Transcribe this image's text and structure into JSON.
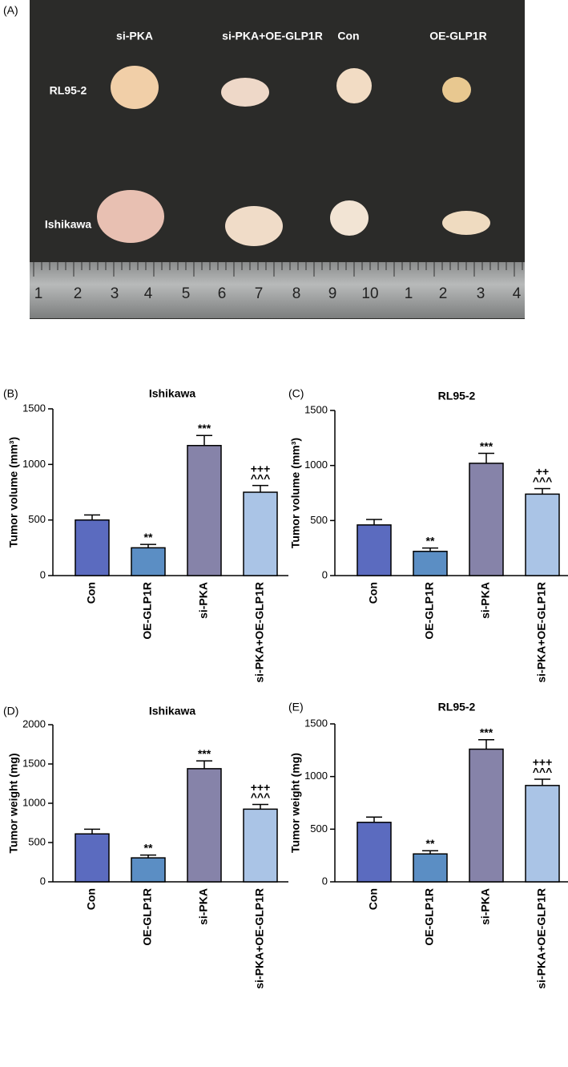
{
  "figure": {
    "panel_labels": [
      "(A)",
      "(B)",
      "(C)",
      "(D)",
      "(E)"
    ],
    "photo": {
      "group_labels": [
        "si-PKA",
        "si-PKA+OE-GLP1R",
        "Con",
        "OE-GLP1R"
      ],
      "row_labels": [
        "RL95-2",
        "Ishikawa"
      ],
      "ruler_labels": [
        "1",
        "2",
        "3",
        "4",
        "5",
        "6",
        "7",
        "8",
        "9",
        "10",
        "1",
        "2",
        "3",
        "4"
      ]
    }
  },
  "chart_data": [
    {
      "type": "bar",
      "title": "Ishikawa",
      "ylabel": "Tumor volume (mm³)",
      "categories": [
        "Con",
        "OE-GLP1R",
        "si-PKA",
        "si-PKA+OE-GLP1R"
      ],
      "values": [
        500,
        250,
        1170,
        750
      ],
      "errors": [
        45,
        30,
        90,
        60
      ],
      "annotations": [
        [],
        [
          "**"
        ],
        [
          "***"
        ],
        [
          "+++",
          "^^^"
        ]
      ],
      "colors": [
        "#5b6bbf",
        "#5b8ec4",
        "#8683a9",
        "#aac4e6"
      ],
      "ylim": [
        0,
        1500
      ],
      "yticks": [
        0,
        500,
        1000,
        1500
      ]
    },
    {
      "type": "bar",
      "title": "RL95-2",
      "ylabel": "Tumor volume (mm³)",
      "categories": [
        "Con",
        "OE-GLP1R",
        "si-PKA",
        "si-PKA+OE-GLP1R"
      ],
      "values": [
        460,
        220,
        1020,
        740
      ],
      "errors": [
        50,
        30,
        90,
        50
      ],
      "annotations": [
        [],
        [
          "**"
        ],
        [
          "***"
        ],
        [
          "++",
          "^^^"
        ]
      ],
      "colors": [
        "#5b6bbf",
        "#5b8ec4",
        "#8683a9",
        "#aac4e6"
      ],
      "ylim": [
        0,
        1500
      ],
      "yticks": [
        0,
        500,
        1000,
        1500
      ]
    },
    {
      "type": "bar",
      "title": "Ishikawa",
      "ylabel": "Tumor weight (mg)",
      "categories": [
        "Con",
        "OE-GLP1R",
        "si-PKA",
        "si-PKA+OE-GLP1R"
      ],
      "values": [
        610,
        305,
        1440,
        925
      ],
      "errors": [
        60,
        35,
        100,
        60
      ],
      "annotations": [
        [],
        [
          "**"
        ],
        [
          "***"
        ],
        [
          "+++",
          "^^^"
        ]
      ],
      "colors": [
        "#5b6bbf",
        "#5b8ec4",
        "#8683a9",
        "#aac4e6"
      ],
      "ylim": [
        0,
        2000
      ],
      "yticks": [
        0,
        500,
        1000,
        1500,
        2000
      ]
    },
    {
      "type": "bar",
      "title": "RL95-2",
      "ylabel": "Tumor weight (mg)",
      "categories": [
        "Con",
        "OE-GLP1R",
        "si-PKA",
        "si-PKA+OE-GLP1R"
      ],
      "values": [
        565,
        265,
        1260,
        915
      ],
      "errors": [
        50,
        30,
        90,
        60
      ],
      "annotations": [
        [],
        [
          "**"
        ],
        [
          "***"
        ],
        [
          "+++",
          "^^^"
        ]
      ],
      "colors": [
        "#5b6bbf",
        "#5b8ec4",
        "#8683a9",
        "#aac4e6"
      ],
      "ylim": [
        0,
        1500
      ],
      "yticks": [
        0,
        500,
        1000,
        1500
      ]
    }
  ]
}
